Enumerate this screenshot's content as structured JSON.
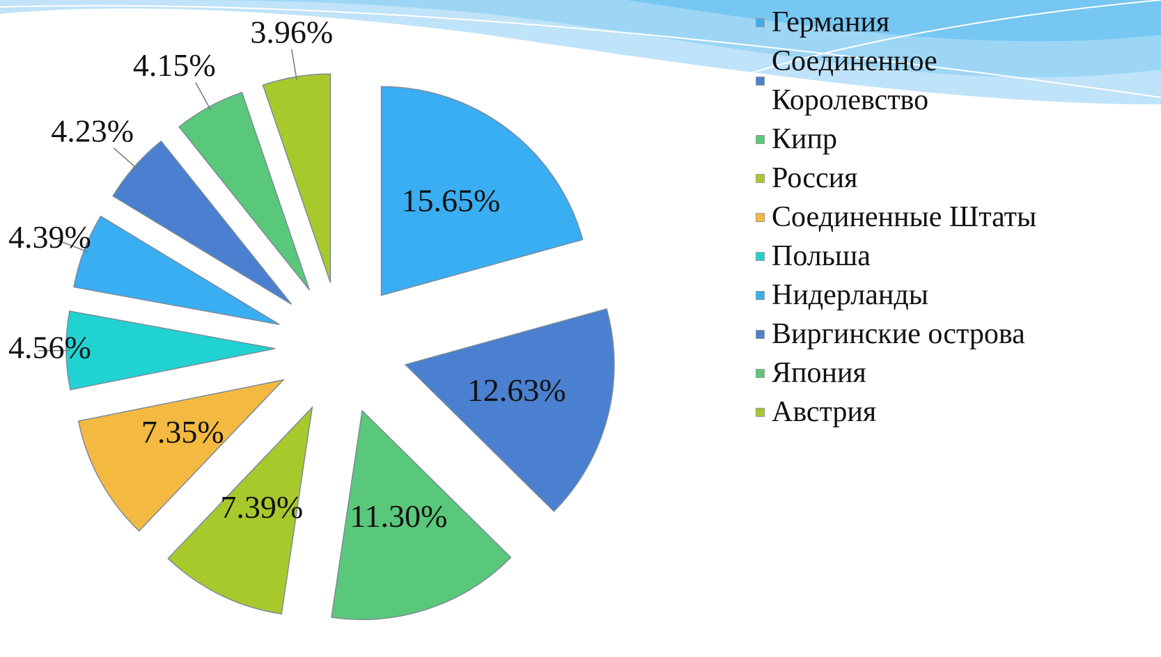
{
  "chart_data": {
    "type": "pie",
    "categories": [
      "Германия",
      "Соединенное Королевство",
      "Кипр",
      "Россия",
      "Соединенные Штаты",
      "Польша",
      "Нидерланды",
      "Виргинские острова",
      "Япония",
      "Австрия"
    ],
    "values": [
      15.65,
      12.63,
      11.3,
      7.39,
      7.35,
      4.56,
      4.39,
      4.23,
      4.15,
      3.96
    ],
    "value_labels": [
      "15.65%",
      "12.63%",
      "11.30%",
      "7.39%",
      "7.35%",
      "4.56%",
      "4.39%",
      "4.23%",
      "4.15%",
      "3.96%"
    ],
    "colors": [
      "#3aaef2",
      "#4a80cf",
      "#5ac87a",
      "#a8c92c",
      "#f4b940",
      "#20d3d2",
      "#3aaef2",
      "#4a80cf",
      "#5ac87a",
      "#a8c92c"
    ],
    "legend": "right"
  }
}
